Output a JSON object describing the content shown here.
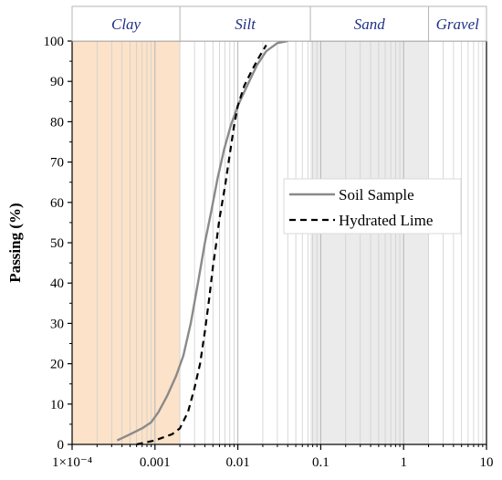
{
  "chart_data": {
    "type": "line",
    "title": "",
    "xlabel": "",
    "ylabel": "Passing (%)",
    "xscale": "log",
    "xlim": [
      0.0001,
      10
    ],
    "ylim": [
      0,
      100
    ],
    "x_ticks": [
      0.0001,
      0.001,
      0.01,
      0.1,
      1,
      10
    ],
    "x_tick_labels": [
      "1×10⁻⁴",
      "0.001",
      "0.01",
      "0.1",
      "1",
      "10"
    ],
    "y_ticks": [
      0,
      10,
      20,
      30,
      40,
      50,
      60,
      70,
      80,
      90,
      100
    ],
    "y_tick_labels": [
      "0",
      "10",
      "20",
      "30",
      "40",
      "50",
      "60",
      "70",
      "80",
      "90",
      "100"
    ],
    "grid": true,
    "legend_position": "right-center",
    "bands": [
      {
        "name": "Clay",
        "x_start": 0.0001,
        "x_end": 0.002,
        "color": "#fbe2c8"
      },
      {
        "name": "Silt",
        "x_start": 0.002,
        "x_end": 0.075,
        "color": "#ffffff"
      },
      {
        "name": "Sand",
        "x_start": 0.075,
        "x_end": 2,
        "color": "#ebebeb"
      },
      {
        "name": "Gravel",
        "x_start": 2,
        "x_end": 10,
        "color": "#ffffff"
      }
    ],
    "series": [
      {
        "name": "Soil Sample",
        "color": "#8a8a8a",
        "dash": "solid",
        "points": [
          [
            0.00035,
            1
          ],
          [
            0.0005,
            2.5
          ],
          [
            0.0007,
            4
          ],
          [
            0.0009,
            5.5
          ],
          [
            0.0011,
            8
          ],
          [
            0.0014,
            12
          ],
          [
            0.0018,
            17
          ],
          [
            0.0022,
            22
          ],
          [
            0.0027,
            30
          ],
          [
            0.0033,
            40
          ],
          [
            0.004,
            50
          ],
          [
            0.0048,
            58
          ],
          [
            0.0057,
            66
          ],
          [
            0.0068,
            73
          ],
          [
            0.0082,
            79
          ],
          [
            0.01,
            84
          ],
          [
            0.013,
            89
          ],
          [
            0.017,
            94
          ],
          [
            0.022,
            97.5
          ],
          [
            0.03,
            99.5
          ],
          [
            0.04,
            100
          ]
        ]
      },
      {
        "name": "Hydrated Lime",
        "color": "#000000",
        "dash": "dashed",
        "points": [
          [
            0.0006,
            0
          ],
          [
            0.001,
            1
          ],
          [
            0.0016,
            2.5
          ],
          [
            0.002,
            4
          ],
          [
            0.0025,
            8
          ],
          [
            0.003,
            14
          ],
          [
            0.0035,
            20
          ],
          [
            0.004,
            28
          ],
          [
            0.0045,
            36
          ],
          [
            0.005,
            44
          ],
          [
            0.0055,
            50
          ],
          [
            0.006,
            56
          ],
          [
            0.007,
            64
          ],
          [
            0.008,
            72
          ],
          [
            0.009,
            79
          ],
          [
            0.01,
            84
          ],
          [
            0.012,
            89
          ],
          [
            0.015,
            93
          ],
          [
            0.018,
            96
          ],
          [
            0.022,
            99
          ]
        ]
      }
    ]
  }
}
